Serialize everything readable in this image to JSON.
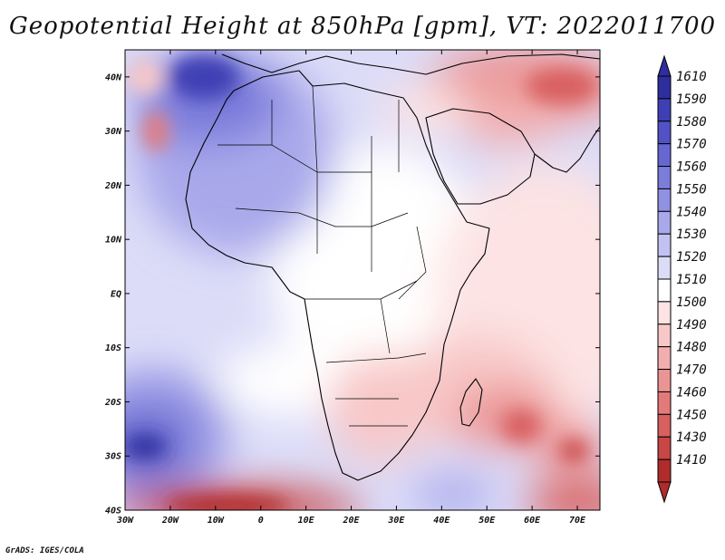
{
  "title": "Geopotential Height at 850hPa [gpm], VT: 2022011700",
  "credit": "GrADS: IGES/COLA",
  "map": {
    "lon_ticks": [
      "30W",
      "20W",
      "10W",
      "0",
      "10E",
      "20E",
      "30E",
      "40E",
      "50E",
      "60E",
      "70E"
    ],
    "lat_ticks": [
      "40N",
      "30N",
      "20N",
      "10N",
      "EQ",
      "10S",
      "20S",
      "30S",
      "40S"
    ],
    "lon_range": [
      -30,
      75
    ],
    "lat_range": [
      -40,
      45
    ]
  },
  "colorbar": {
    "labels": [
      "1610",
      "1590",
      "1580",
      "1570",
      "1560",
      "1550",
      "1540",
      "1530",
      "1520",
      "1510",
      "1500",
      "1490",
      "1480",
      "1470",
      "1460",
      "1450",
      "1430",
      "1410"
    ],
    "colors": [
      "#2e2e9e",
      "#3f3fb5",
      "#5252c6",
      "#6767d2",
      "#7c7cdb",
      "#9191e3",
      "#a8a8eb",
      "#c2c2f2",
      "#dcdcf8",
      "#ffffff",
      "#fde3e3",
      "#f8c8c8",
      "#f2aeae",
      "#eb9494",
      "#e37a7a",
      "#d86060",
      "#c84646",
      "#b02c2c"
    ]
  }
}
